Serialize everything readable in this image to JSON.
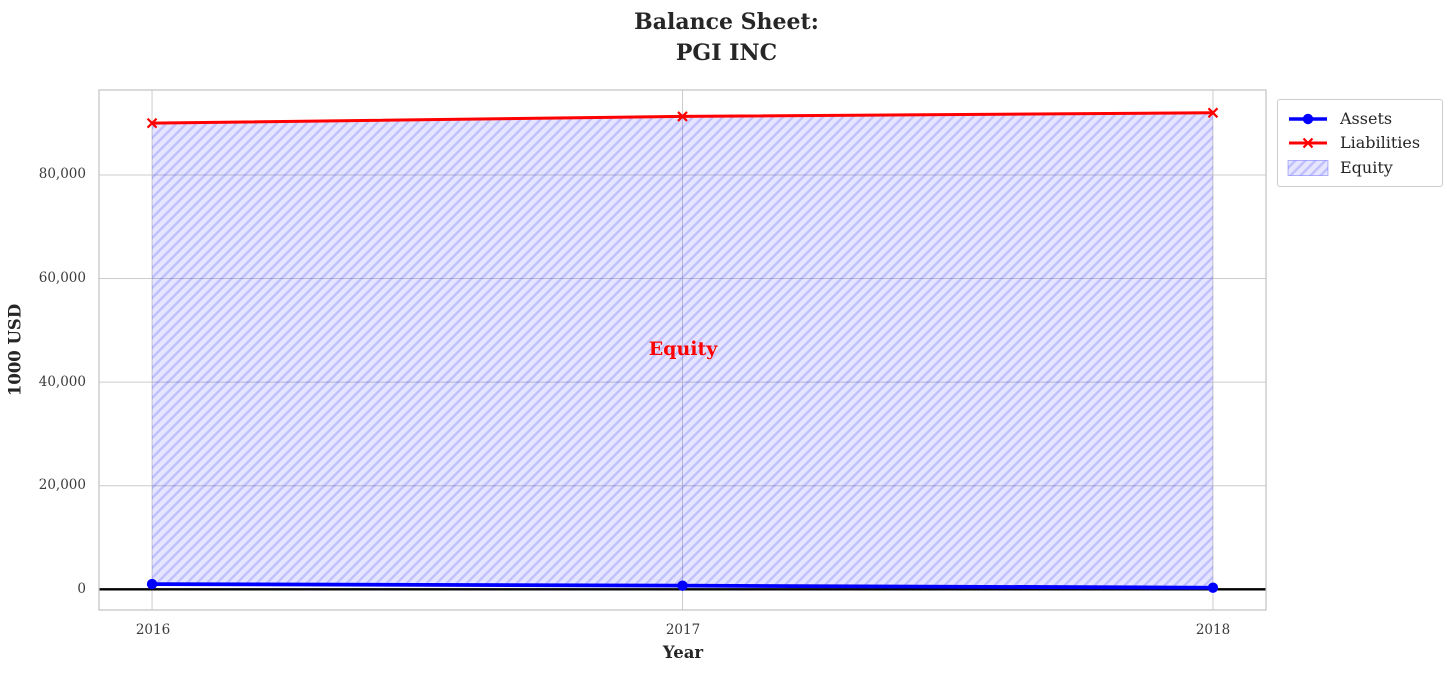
{
  "title": {
    "text": "Balance Sheet:\nPGI INC"
  },
  "axes": {
    "xlabel": "Year",
    "ylabel": "1000 USD",
    "x_ticks": [
      "2016",
      "2017",
      "2018"
    ],
    "x_tick_values": [
      2016,
      2017,
      2018
    ],
    "y_ticks": [
      "0",
      "20,000",
      "40,000",
      "60,000",
      "80,000"
    ],
    "y_tick_values": [
      0,
      20000,
      40000,
      60000,
      80000
    ]
  },
  "legend": {
    "items": [
      {
        "label": "Assets"
      },
      {
        "label": "Liabilities"
      },
      {
        "label": "Equity"
      }
    ]
  },
  "annotation": {
    "text": "Equity",
    "color": "#ff0000"
  },
  "chart_data": {
    "type": "line",
    "x": [
      2016,
      2017,
      2018
    ],
    "series": [
      {
        "name": "Assets",
        "values": [
          1000,
          700,
          300
        ],
        "color": "#0000ff",
        "marker": "circle"
      },
      {
        "name": "Liabilities",
        "values": [
          90000,
          91300,
          92000
        ],
        "color": "#ff0000",
        "marker": "x"
      }
    ],
    "fill_between": {
      "name": "Equity",
      "upper": "Liabilities",
      "lower": "Assets",
      "fill": "rgba(0,0,255,0.10)",
      "hatch": "rgba(0,0,255,0.16)"
    },
    "title": "Balance Sheet:\nPGI INC",
    "xlabel": "Year",
    "ylabel": "1000 USD",
    "xlim": [
      2015.9,
      2018.1
    ],
    "ylim": [
      -4000,
      96400
    ],
    "grid": true,
    "grid_color": "#cccccc",
    "frame_color": "#c2c2c2",
    "zero_line_y": 0,
    "zero_line_color": "#000000",
    "legend_position": "outside upper right"
  }
}
